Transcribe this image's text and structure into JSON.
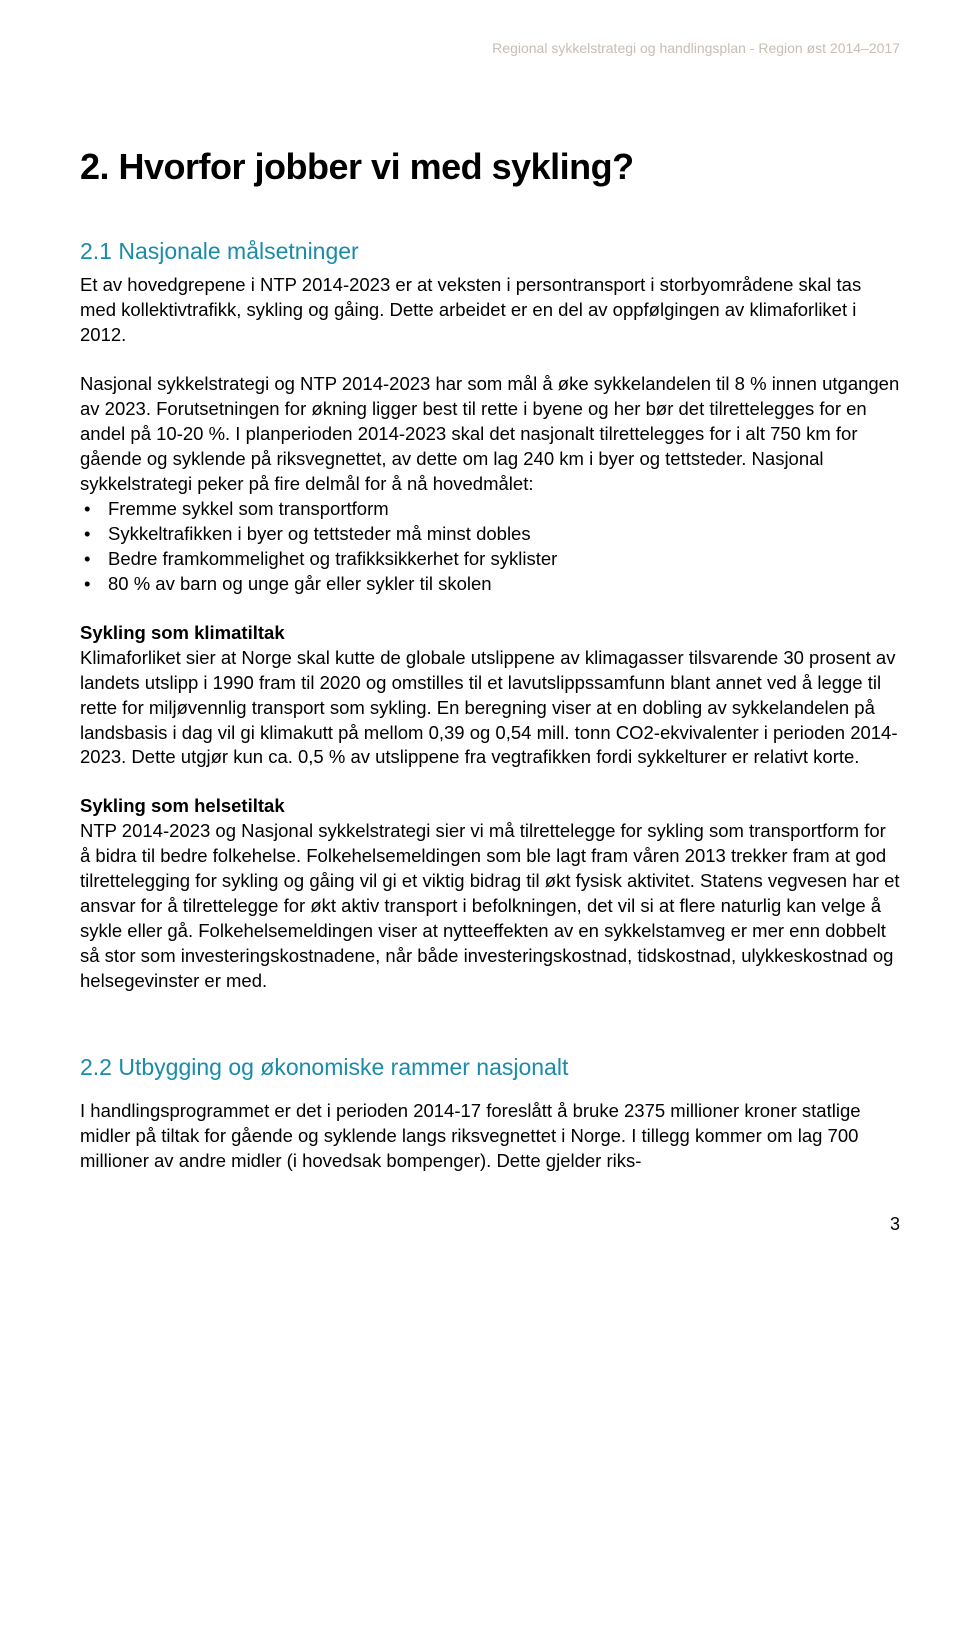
{
  "header": "Regional sykkelstrategi og handlingsplan - Region øst 2014–2017",
  "mainHeading": "2. Hvorfor jobber vi med sykling?",
  "section21": {
    "title": "2.1 Nasjonale målsetninger",
    "para1": "Et av hovedgrepene i NTP 2014-2023 er at veksten i persontransport i storbyområdene skal tas med kollektivtrafikk, sykling og gåing. Dette arbeidet er en del av oppfølgingen av klimaforliket i 2012.",
    "para2": "Nasjonal sykkelstrategi og NTP 2014-2023 har som mål å øke sykkelandelen til 8 % innen utgangen av 2023. Forutsetningen for økning ligger best til rette i byene og her bør det tilrettelegges for en andel på 10-20 %. I planperioden 2014-2023 skal det nasjonalt tilrettelegges for i alt 750 km for gående og syklende på riksvegnettet, av dette om lag 240 km i byer og tettsteder. Nasjonal sykkelstrategi peker på fire delmål for å nå hovedmålet:",
    "bullets": [
      "Fremme sykkel som transportform",
      "Sykkeltrafikken i byer og tettsteder må minst dobles",
      "Bedre framkommelighet og trafikksikkerhet for syklister",
      "80 % av barn og unge går eller sykler til skolen"
    ],
    "klimaTitle": "Sykling som klimatiltak",
    "klimaText": "Klimaforliket sier at Norge skal kutte de globale utslippene av klimagasser tilsvarende 30 prosent av landets utslipp i 1990 fram til 2020 og omstilles til et lavutslippssamfunn blant annet ved å legge til rette for miljøvennlig transport som sykling. En beregning viser at en dobling av sykkelandelen på landsbasis i dag vil gi klimakutt på mellom 0,39 og 0,54 mill. tonn CO2-ekvivalenter i perioden 2014-2023. Dette utgjør kun ca. 0,5 % av utslippene fra vegtrafikken fordi sykkelturer er relativt korte.",
    "helseTitle": "Sykling som helsetiltak",
    "helseText": "NTP 2014-2023 og Nasjonal sykkelstrategi sier vi må tilrettelegge for sykling som transportform for å bidra til bedre folkehelse. Folkehelsemeldingen som ble lagt fram våren 2013 trekker fram at god tilrettelegging for sykling og gåing vil gi et viktig bidrag til økt fysisk aktivitet. Statens vegvesen har et ansvar for å tilrettelegge for økt aktiv transport i befolkningen, det vil si at flere naturlig kan velge å sykle eller gå. Folkehelsemeldingen viser at nytteeffekten av en sykkelstamveg er mer enn dobbelt så stor som investeringskostnadene, når både investeringskostnad, tidskostnad, ulykkeskostnad og helsegevinster er med."
  },
  "section22": {
    "title": "2.2 Utbygging og økonomiske rammer nasjonalt",
    "para": "I handlingsprogrammet er det i perioden 2014-17 foreslått å bruke 2375 millioner kroner statlige midler på tiltak for gående og syklende langs riksvegnettet i Norge. I tillegg kommer om lag 700 millioner av andre midler (i hovedsak bompenger). Dette gjelder riks-"
  },
  "pageNo": "3",
  "colors": {
    "headerColor": "#c8beb4",
    "headingColor": "#1a8ba8",
    "textColor": "#000000",
    "background": "#ffffff"
  }
}
